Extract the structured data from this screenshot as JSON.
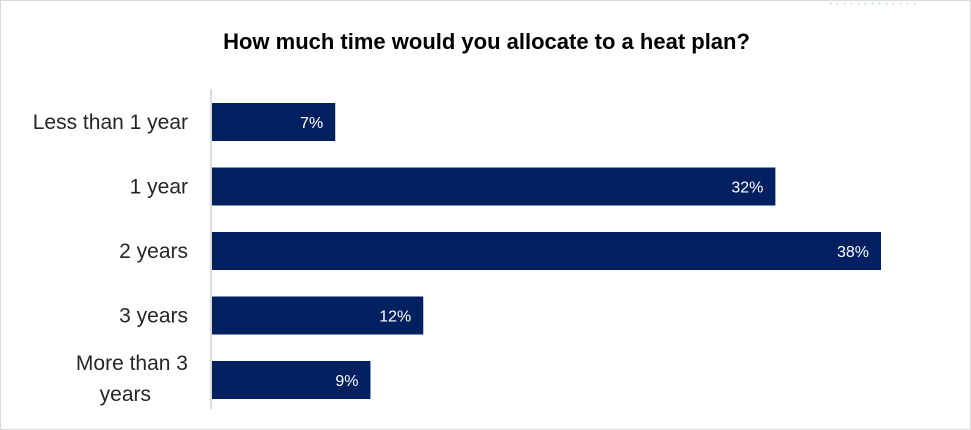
{
  "chart_data": {
    "type": "bar",
    "orientation": "horizontal",
    "title": "How much time would you allocate to a heat plan?",
    "categories": [
      "Less than 1 year",
      "1 year",
      "2 years",
      "3 years",
      "More than 3 years"
    ],
    "values": [
      7,
      32,
      38,
      12,
      9
    ],
    "data_labels": [
      "7%",
      "32%",
      "38%",
      "12%",
      "9%"
    ],
    "unit": "%",
    "xlim": [
      0,
      38
    ],
    "grid": false,
    "legend": "none",
    "bar_color": "#002060",
    "label_color": "#ffffff"
  }
}
